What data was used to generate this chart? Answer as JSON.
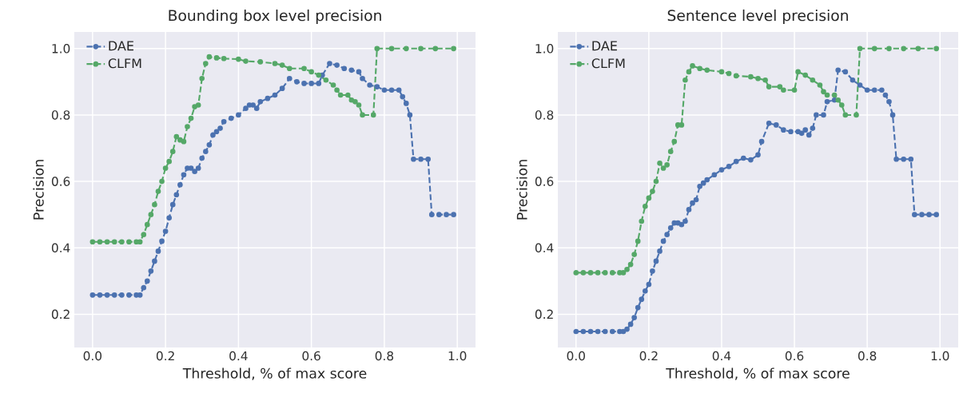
{
  "chart_data": [
    {
      "type": "line",
      "title": "Bounding box level precision",
      "xlabel": "Threshold, % of max score",
      "ylabel": "Precision",
      "xlim": [
        -0.05,
        1.05
      ],
      "ylim": [
        0.1,
        1.05
      ],
      "xticks": [
        {
          "value": 0,
          "label": "0.0"
        },
        {
          "value": 0.2,
          "label": "0.2"
        },
        {
          "value": 0.4,
          "label": "0.4"
        },
        {
          "value": 0.6,
          "label": "0.6"
        },
        {
          "value": 0.8,
          "label": "0.8"
        },
        {
          "value": 1,
          "label": "1.0"
        }
      ],
      "yticks": [
        {
          "value": 0.2,
          "label": "0.2"
        },
        {
          "value": 0.4,
          "label": "0.4"
        },
        {
          "value": 0.6,
          "label": "0.6"
        },
        {
          "value": 0.8,
          "label": "0.8"
        },
        {
          "value": 1,
          "label": "1.0"
        }
      ],
      "grid": true,
      "legend": "top left",
      "marker": "circle",
      "line_style": "dashed",
      "series": [
        {
          "name": "DAE",
          "color": "#4c72b0",
          "x": [
            0,
            0.02,
            0.04,
            0.06,
            0.08,
            0.1,
            0.12,
            0.13,
            0.14,
            0.15,
            0.16,
            0.17,
            0.18,
            0.19,
            0.2,
            0.21,
            0.22,
            0.23,
            0.24,
            0.25,
            0.26,
            0.27,
            0.28,
            0.29,
            0.3,
            0.31,
            0.32,
            0.33,
            0.34,
            0.35,
            0.36,
            0.38,
            0.4,
            0.42,
            0.43,
            0.44,
            0.45,
            0.46,
            0.48,
            0.5,
            0.52,
            0.54,
            0.56,
            0.58,
            0.6,
            0.62,
            0.63,
            0.65,
            0.67,
            0.69,
            0.71,
            0.73,
            0.74,
            0.76,
            0.78,
            0.8,
            0.82,
            0.84,
            0.85,
            0.86,
            0.87,
            0.88,
            0.9,
            0.92,
            0.93,
            0.95,
            0.97,
            0.99
          ],
          "values": [
            0.258,
            0.258,
            0.258,
            0.258,
            0.258,
            0.258,
            0.258,
            0.258,
            0.28,
            0.3,
            0.33,
            0.36,
            0.39,
            0.42,
            0.45,
            0.49,
            0.53,
            0.56,
            0.59,
            0.62,
            0.64,
            0.64,
            0.63,
            0.64,
            0.67,
            0.69,
            0.71,
            0.74,
            0.75,
            0.76,
            0.78,
            0.79,
            0.8,
            0.82,
            0.83,
            0.83,
            0.82,
            0.84,
            0.85,
            0.86,
            0.88,
            0.91,
            0.9,
            0.895,
            0.895,
            0.895,
            0.92,
            0.955,
            0.95,
            0.94,
            0.935,
            0.93,
            0.91,
            0.89,
            0.885,
            0.875,
            0.875,
            0.875,
            0.855,
            0.835,
            0.8,
            0.667,
            0.667,
            0.667,
            0.5,
            0.5,
            0.5,
            0.5
          ]
        },
        {
          "name": "CLFM",
          "color": "#55a868",
          "x": [
            0,
            0.02,
            0.04,
            0.06,
            0.08,
            0.1,
            0.12,
            0.13,
            0.14,
            0.15,
            0.16,
            0.17,
            0.18,
            0.19,
            0.2,
            0.21,
            0.22,
            0.23,
            0.24,
            0.25,
            0.26,
            0.27,
            0.28,
            0.29,
            0.3,
            0.31,
            0.32,
            0.34,
            0.36,
            0.4,
            0.42,
            0.46,
            0.5,
            0.52,
            0.54,
            0.58,
            0.6,
            0.62,
            0.64,
            0.66,
            0.67,
            0.68,
            0.7,
            0.71,
            0.72,
            0.73,
            0.74,
            0.77,
            0.78,
            0.82,
            0.86,
            0.9,
            0.94,
            0.99
          ],
          "values": [
            0.418,
            0.418,
            0.418,
            0.418,
            0.418,
            0.418,
            0.418,
            0.418,
            0.44,
            0.47,
            0.5,
            0.53,
            0.57,
            0.6,
            0.64,
            0.66,
            0.69,
            0.735,
            0.725,
            0.72,
            0.765,
            0.79,
            0.825,
            0.83,
            0.91,
            0.955,
            0.975,
            0.972,
            0.97,
            0.968,
            0.962,
            0.96,
            0.955,
            0.95,
            0.94,
            0.94,
            0.93,
            0.92,
            0.905,
            0.89,
            0.875,
            0.86,
            0.86,
            0.845,
            0.84,
            0.83,
            0.8,
            0.8,
            1.0,
            1.0,
            1.0,
            1.0,
            1.0,
            1.0
          ]
        }
      ]
    },
    {
      "type": "line",
      "title": "Sentence level precision",
      "xlabel": "Threshold, % of max score",
      "ylabel": "Precision",
      "xlim": [
        -0.05,
        1.05
      ],
      "ylim": [
        0.1,
        1.05
      ],
      "xticks": [
        {
          "value": 0,
          "label": "0.0"
        },
        {
          "value": 0.2,
          "label": "0.2"
        },
        {
          "value": 0.4,
          "label": "0.4"
        },
        {
          "value": 0.6,
          "label": "0.6"
        },
        {
          "value": 0.8,
          "label": "0.8"
        },
        {
          "value": 1,
          "label": "1.0"
        }
      ],
      "yticks": [
        {
          "value": 0.2,
          "label": "0.2"
        },
        {
          "value": 0.4,
          "label": "0.4"
        },
        {
          "value": 0.6,
          "label": "0.6"
        },
        {
          "value": 0.8,
          "label": "0.8"
        },
        {
          "value": 1,
          "label": "1.0"
        }
      ],
      "grid": true,
      "legend": "top left",
      "marker": "circle",
      "line_style": "dashed",
      "series": [
        {
          "name": "DAE",
          "color": "#4c72b0",
          "x": [
            0,
            0.02,
            0.04,
            0.06,
            0.08,
            0.1,
            0.12,
            0.13,
            0.14,
            0.15,
            0.16,
            0.17,
            0.18,
            0.19,
            0.2,
            0.21,
            0.22,
            0.23,
            0.24,
            0.25,
            0.26,
            0.27,
            0.28,
            0.29,
            0.3,
            0.31,
            0.32,
            0.33,
            0.34,
            0.35,
            0.36,
            0.38,
            0.4,
            0.42,
            0.44,
            0.46,
            0.48,
            0.5,
            0.51,
            0.53,
            0.55,
            0.57,
            0.59,
            0.61,
            0.62,
            0.63,
            0.64,
            0.65,
            0.66,
            0.68,
            0.69,
            0.71,
            0.72,
            0.74,
            0.76,
            0.78,
            0.8,
            0.82,
            0.84,
            0.85,
            0.86,
            0.87,
            0.88,
            0.9,
            0.92,
            0.93,
            0.95,
            0.97,
            0.99
          ],
          "values": [
            0.148,
            0.148,
            0.148,
            0.148,
            0.148,
            0.148,
            0.148,
            0.148,
            0.155,
            0.17,
            0.19,
            0.22,
            0.245,
            0.27,
            0.29,
            0.33,
            0.36,
            0.39,
            0.42,
            0.44,
            0.46,
            0.475,
            0.475,
            0.47,
            0.48,
            0.515,
            0.535,
            0.545,
            0.585,
            0.595,
            0.605,
            0.62,
            0.635,
            0.645,
            0.66,
            0.67,
            0.665,
            0.68,
            0.72,
            0.775,
            0.77,
            0.755,
            0.75,
            0.75,
            0.745,
            0.755,
            0.74,
            0.76,
            0.8,
            0.8,
            0.84,
            0.845,
            0.935,
            0.93,
            0.905,
            0.89,
            0.875,
            0.875,
            0.875,
            0.86,
            0.84,
            0.8,
            0.667,
            0.667,
            0.667,
            0.5,
            0.5,
            0.5,
            0.5
          ]
        },
        {
          "name": "CLFM",
          "color": "#55a868",
          "x": [
            0,
            0.02,
            0.04,
            0.06,
            0.08,
            0.1,
            0.12,
            0.13,
            0.14,
            0.15,
            0.16,
            0.17,
            0.18,
            0.19,
            0.2,
            0.21,
            0.22,
            0.23,
            0.24,
            0.25,
            0.26,
            0.27,
            0.28,
            0.29,
            0.3,
            0.31,
            0.32,
            0.34,
            0.36,
            0.4,
            0.42,
            0.44,
            0.48,
            0.5,
            0.52,
            0.53,
            0.56,
            0.57,
            0.6,
            0.61,
            0.63,
            0.65,
            0.67,
            0.68,
            0.69,
            0.71,
            0.72,
            0.73,
            0.74,
            0.77,
            0.78,
            0.82,
            0.86,
            0.9,
            0.94,
            0.99
          ],
          "values": [
            0.325,
            0.325,
            0.325,
            0.325,
            0.325,
            0.325,
            0.325,
            0.325,
            0.335,
            0.35,
            0.38,
            0.42,
            0.48,
            0.525,
            0.55,
            0.57,
            0.6,
            0.655,
            0.64,
            0.65,
            0.69,
            0.72,
            0.77,
            0.77,
            0.905,
            0.93,
            0.948,
            0.94,
            0.935,
            0.93,
            0.925,
            0.918,
            0.915,
            0.91,
            0.905,
            0.885,
            0.885,
            0.875,
            0.875,
            0.93,
            0.92,
            0.905,
            0.89,
            0.87,
            0.86,
            0.86,
            0.845,
            0.83,
            0.8,
            0.8,
            1.0,
            1.0,
            1.0,
            1.0,
            1.0,
            1.0
          ]
        }
      ]
    }
  ]
}
